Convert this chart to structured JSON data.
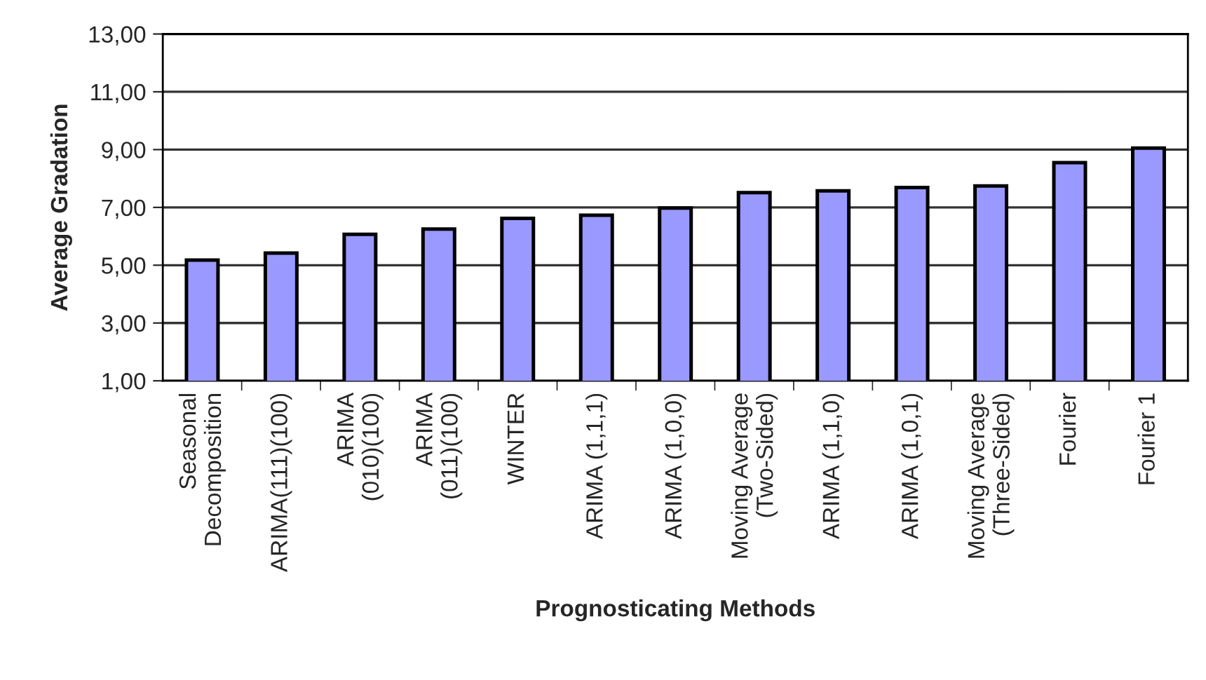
{
  "chart_data": {
    "type": "bar",
    "xlabel": "Prognosticating Methods",
    "ylabel": "Average Gradation",
    "categories": [
      "Seasonal\nDecomposition",
      "ARIMA(111)(100)",
      "ARIMA\n(010)(100)",
      "ARIMA\n(011)(100)",
      "WINTER",
      "ARIMA (1,1,1)",
      "ARIMA (1,0,0)",
      "Moving Average\n(Two-Sided)",
      "ARIMA (1,1,0)",
      "ARIMA (1,0,1)",
      "Moving Average\n(Three-Sided)",
      "Fourier",
      "Fourier 1"
    ],
    "values": [
      5.18,
      5.42,
      6.07,
      6.25,
      6.62,
      6.73,
      6.98,
      7.51,
      7.57,
      7.69,
      7.74,
      8.55,
      9.05
    ],
    "color": "#9999ff",
    "ylim": [
      1,
      13
    ],
    "yticks": [
      {
        "value": 1,
        "label": "1,00"
      },
      {
        "value": 3,
        "label": "3,00"
      },
      {
        "value": 5,
        "label": "5,00"
      },
      {
        "value": 7,
        "label": "7,00"
      },
      {
        "value": 9,
        "label": "9,00"
      },
      {
        "value": 11,
        "label": "11,00"
      },
      {
        "value": 13,
        "label": "13,00"
      }
    ],
    "grid": "y",
    "legend": false
  }
}
